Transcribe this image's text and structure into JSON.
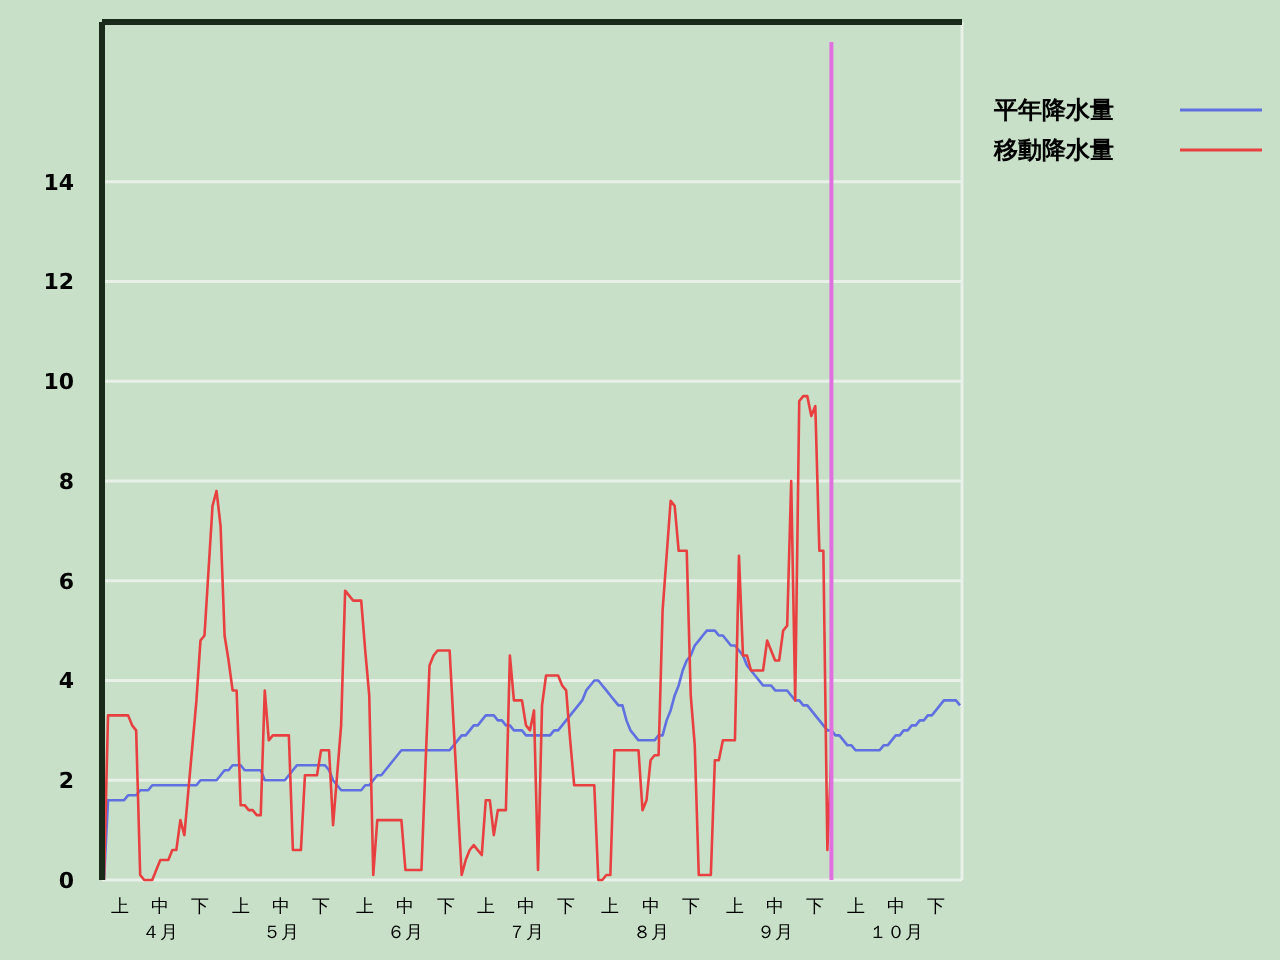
{
  "chart_data": {
    "type": "line",
    "ylim": [
      0,
      17.2
    ],
    "yticks": [
      0,
      2,
      4,
      6,
      8,
      10,
      12,
      14
    ],
    "categories": [
      null,
      null,
      null,
      null,
      "上",
      null,
      null,
      null,
      null,
      null,
      null,
      null,
      null,
      null,
      "中４月",
      null,
      null,
      null,
      null,
      null,
      null,
      null,
      null,
      null,
      "下",
      null,
      null,
      null,
      null,
      null,
      null,
      null,
      null,
      null,
      "上",
      null,
      null,
      null,
      null,
      null,
      null,
      null,
      null,
      null,
      "中５月",
      null,
      null,
      null,
      null,
      null,
      null,
      null,
      null,
      null,
      "下",
      null,
      null,
      null,
      null,
      null,
      null,
      null,
      null,
      null,
      null,
      "上",
      null,
      null,
      null,
      null,
      null,
      null,
      null,
      null,
      null,
      "中６月",
      null,
      null,
      null,
      null,
      null,
      null,
      null,
      null,
      null,
      "下",
      null,
      null,
      null,
      null,
      null,
      null,
      null,
      null,
      null,
      "上",
      null,
      null,
      null,
      null,
      null,
      null,
      null,
      null,
      null,
      "中７月",
      null,
      null,
      null,
      null,
      null,
      null,
      null,
      null,
      null,
      "下",
      null,
      null,
      null,
      null,
      null,
      null,
      null,
      null,
      null,
      null,
      "上",
      null,
      null,
      null,
      null,
      null,
      null,
      null,
      null,
      null,
      "中８月",
      null,
      null,
      null,
      null,
      null,
      null,
      null,
      null,
      null,
      "下",
      null,
      null,
      null,
      null,
      null,
      null,
      null,
      null,
      null,
      null,
      "上",
      null,
      null,
      null,
      null,
      null,
      null,
      null,
      null,
      null,
      "中９月",
      null,
      null,
      null,
      null,
      null,
      null,
      null,
      null,
      null,
      "下",
      null,
      null,
      null,
      null,
      null,
      null,
      null,
      null,
      null,
      "上",
      null,
      null,
      null,
      null,
      null,
      null,
      null,
      null,
      null,
      "中１０月",
      null,
      null,
      null,
      null,
      null,
      null,
      null,
      null,
      null,
      "下",
      null,
      null,
      null,
      null,
      null,
      null
    ],
    "grid": "y",
    "legend": "top right",
    "series": [
      {
        "name": "平年降水量",
        "color": "#6070e0",
        "values": [
          0,
          1.6,
          1.6,
          1.6,
          1.6,
          1.6,
          1.7,
          1.7,
          1.7,
          1.8,
          1.8,
          1.8,
          1.9,
          1.9,
          1.9,
          1.9,
          1.9,
          1.9,
          1.9,
          1.9,
          1.9,
          1.9,
          1.9,
          1.9,
          2.0,
          2.0,
          2.0,
          2.0,
          2.0,
          2.1,
          2.2,
          2.2,
          2.3,
          2.3,
          2.3,
          2.2,
          2.2,
          2.2,
          2.2,
          2.2,
          2.0,
          2.0,
          2.0,
          2.0,
          2.0,
          2.0,
          2.1,
          2.2,
          2.3,
          2.3,
          2.3,
          2.3,
          2.3,
          2.3,
          2.3,
          2.3,
          2.2,
          2.0,
          1.9,
          1.8,
          1.8,
          1.8,
          1.8,
          1.8,
          1.8,
          1.9,
          1.9,
          2.0,
          2.1,
          2.1,
          2.2,
          2.3,
          2.4,
          2.5,
          2.6,
          2.6,
          2.6,
          2.6,
          2.6,
          2.6,
          2.6,
          2.6,
          2.6,
          2.6,
          2.6,
          2.6,
          2.6,
          2.7,
          2.8,
          2.9,
          2.9,
          3.0,
          3.1,
          3.1,
          3.2,
          3.3,
          3.3,
          3.3,
          3.2,
          3.2,
          3.1,
          3.1,
          3.0,
          3.0,
          3.0,
          2.9,
          2.9,
          2.9,
          2.9,
          2.9,
          2.9,
          2.9,
          3.0,
          3.0,
          3.1,
          3.2,
          3.3,
          3.4,
          3.5,
          3.6,
          3.8,
          3.9,
          4.0,
          4.0,
          3.9,
          3.8,
          3.7,
          3.6,
          3.5,
          3.5,
          3.2,
          3.0,
          2.9,
          2.8,
          2.8,
          2.8,
          2.8,
          2.8,
          2.9,
          2.9,
          3.2,
          3.4,
          3.7,
          3.9,
          4.2,
          4.4,
          4.5,
          4.7,
          4.8,
          4.9,
          5.0,
          5.0,
          5.0,
          4.9,
          4.9,
          4.8,
          4.7,
          4.7,
          4.6,
          4.5,
          4.3,
          4.2,
          4.1,
          4.0,
          3.9,
          3.9,
          3.9,
          3.8,
          3.8,
          3.8,
          3.8,
          3.7,
          3.6,
          3.6,
          3.5,
          3.5,
          3.4,
          3.3,
          3.2,
          3.1,
          3.0,
          3.0,
          2.9,
          2.9,
          2.8,
          2.7,
          2.7,
          2.6,
          2.6,
          2.6,
          2.6,
          2.6,
          2.6,
          2.6,
          2.7,
          2.7,
          2.8,
          2.9,
          2.9,
          3.0,
          3.0,
          3.1,
          3.1,
          3.2,
          3.2,
          3.3,
          3.3,
          3.4,
          3.5,
          3.6,
          3.6,
          3.6,
          3.6,
          3.5
        ]
      },
      {
        "name": "移動降水量",
        "color": "#e84040",
        "values": [
          0,
          3.3,
          3.3,
          3.3,
          3.3,
          3.3,
          3.3,
          3.1,
          3.0,
          0.1,
          0,
          0,
          0,
          0.2,
          0.4,
          0.4,
          0.4,
          0.6,
          0.6,
          1.2,
          0.9,
          1.8,
          2.7,
          3.6,
          4.8,
          4.9,
          6.2,
          7.5,
          7.8,
          7.1,
          4.9,
          4.4,
          3.8,
          3.8,
          1.5,
          1.5,
          1.4,
          1.4,
          1.3,
          1.3,
          3.8,
          2.8,
          2.9,
          2.9,
          2.9,
          2.9,
          2.9,
          0.6,
          0.6,
          0.6,
          2.1,
          2.1,
          2.1,
          2.1,
          2.6,
          2.6,
          2.6,
          1.1,
          2.1,
          3.1,
          5.8,
          5.7,
          5.6,
          5.6,
          5.6,
          4.6,
          3.7,
          0.1,
          1.2,
          1.2,
          1.2,
          1.2,
          1.2,
          1.2,
          1.2,
          0.2,
          0.2,
          0.2,
          0.2,
          0.2,
          2.3,
          4.3,
          4.5,
          4.6,
          4.6,
          4.6,
          4.6,
          3.1,
          1.6,
          0.1,
          0.4,
          0.6,
          0.7,
          0.6,
          0.5,
          1.6,
          1.6,
          0.9,
          1.4,
          1.4,
          1.4,
          4.5,
          3.6,
          3.6,
          3.6,
          3.1,
          3.0,
          3.4,
          0.2,
          3.5,
          4.1,
          4.1,
          4.1,
          4.1,
          3.9,
          3.8,
          2.8,
          1.9,
          1.9,
          1.9,
          1.9,
          1.9,
          1.9,
          0,
          0,
          0.1,
          0.1,
          2.6,
          2.6,
          2.6,
          2.6,
          2.6,
          2.6,
          2.6,
          1.4,
          1.6,
          2.4,
          2.5,
          2.5,
          5.4,
          6.5,
          7.6,
          7.5,
          6.6,
          6.6,
          6.6,
          3.7,
          2.7,
          0.1,
          0.1,
          0.1,
          0.1,
          2.4,
          2.4,
          2.8,
          2.8,
          2.8,
          2.8,
          6.5,
          4.5,
          4.5,
          4.2,
          4.2,
          4.2,
          4.2,
          4.8,
          4.6,
          4.4,
          4.4,
          5.0,
          5.1,
          8.0,
          3.6,
          9.6,
          9.7,
          9.7,
          9.3,
          9.5,
          6.6,
          6.6,
          0.6,
          2.5,
          null,
          null,
          null,
          null,
          null,
          null,
          null,
          null,
          null,
          null,
          null,
          null,
          null,
          null,
          null,
          null,
          null,
          null,
          null,
          null,
          null,
          null,
          null,
          null,
          null,
          null,
          null,
          null,
          null,
          null,
          null,
          null
        ]
      }
    ]
  }
}
